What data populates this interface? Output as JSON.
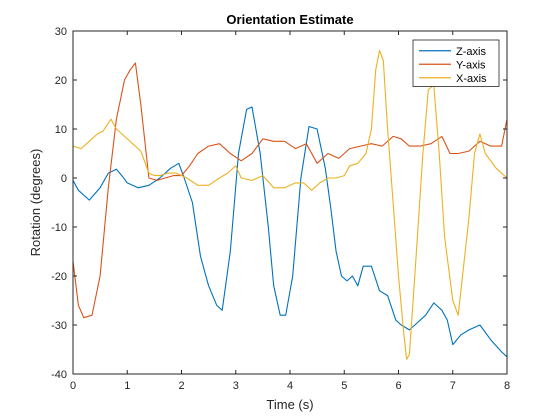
{
  "chart_data": {
    "type": "line",
    "title": "Orientation Estimate",
    "xlabel": "Time (s)",
    "ylabel": "Rotation (degrees)",
    "xlim": [
      0,
      8
    ],
    "ylim": [
      -40,
      30
    ],
    "xticks": [
      0,
      1,
      2,
      3,
      4,
      5,
      6,
      7,
      8
    ],
    "yticks": [
      30,
      20,
      10,
      0,
      -10,
      -20,
      -30,
      -40
    ],
    "grid": false,
    "legend_position": "top-right",
    "series": [
      {
        "name": "Z-axis",
        "color": "#0072BD",
        "x": [
          0,
          0.1,
          0.3,
          0.5,
          0.65,
          0.8,
          0.9,
          1.0,
          1.2,
          1.4,
          1.6,
          1.8,
          1.95,
          2.05,
          2.2,
          2.35,
          2.5,
          2.65,
          2.75,
          2.9,
          3.05,
          3.2,
          3.3,
          3.45,
          3.6,
          3.7,
          3.82,
          3.92,
          4.05,
          4.2,
          4.35,
          4.5,
          4.65,
          4.75,
          4.85,
          4.95,
          5.05,
          5.15,
          5.25,
          5.35,
          5.5,
          5.65,
          5.8,
          5.95,
          6.05,
          6.2,
          6.35,
          6.5,
          6.65,
          6.8,
          6.9,
          7.0,
          7.15,
          7.3,
          7.5,
          7.7,
          7.9,
          8.0
        ],
        "y": [
          -0.5,
          -2.5,
          -4.5,
          -2,
          1,
          1.8,
          0.5,
          -1,
          -2,
          -1.5,
          0,
          2,
          3,
          0,
          -5,
          -16,
          -22,
          -26,
          -27,
          -15,
          5,
          14,
          14.5,
          5,
          -10,
          -22,
          -28,
          -28,
          -20,
          0,
          10.5,
          10,
          2,
          -6,
          -15,
          -20,
          -21,
          -20,
          -22,
          -18,
          -18,
          -23,
          -24,
          -29,
          -30,
          -31,
          -29.5,
          -28,
          -25.5,
          -27,
          -29,
          -34,
          -32,
          -31,
          -30,
          -33,
          -35.5,
          -36.5
        ]
      },
      {
        "name": "Y-axis",
        "color": "#D95319",
        "x": [
          0,
          0.1,
          0.2,
          0.35,
          0.5,
          0.65,
          0.8,
          0.95,
          1.05,
          1.15,
          1.25,
          1.4,
          1.55,
          1.7,
          1.85,
          2.0,
          2.15,
          2.3,
          2.5,
          2.7,
          2.9,
          3.1,
          3.3,
          3.5,
          3.7,
          3.9,
          4.1,
          4.3,
          4.5,
          4.7,
          4.9,
          5.1,
          5.3,
          5.5,
          5.7,
          5.9,
          6.05,
          6.2,
          6.4,
          6.6,
          6.8,
          6.95,
          7.1,
          7.3,
          7.5,
          7.7,
          7.9,
          8.0
        ],
        "y": [
          -17,
          -26,
          -28.5,
          -28,
          -20,
          -2,
          12,
          20,
          22,
          23.5,
          15,
          0,
          -0.5,
          0,
          0.5,
          0.5,
          2.5,
          5,
          6.5,
          7,
          5,
          3.5,
          5,
          8,
          7.5,
          7.5,
          6,
          7,
          3,
          5,
          4,
          6,
          6.5,
          7,
          6.5,
          8.5,
          8,
          6.5,
          6.5,
          7,
          8.5,
          5,
          5,
          5.5,
          7.5,
          6.5,
          6.5,
          12
        ]
      },
      {
        "name": "X-axis",
        "color": "#EDB120",
        "x": [
          0,
          0.15,
          0.3,
          0.45,
          0.55,
          0.7,
          0.8,
          0.95,
          1.1,
          1.25,
          1.4,
          1.5,
          1.6,
          1.75,
          1.9,
          2.1,
          2.3,
          2.5,
          2.7,
          2.85,
          3.0,
          3.1,
          3.3,
          3.5,
          3.7,
          3.9,
          4.1,
          4.25,
          4.4,
          4.55,
          4.7,
          4.85,
          5.0,
          5.1,
          5.25,
          5.4,
          5.5,
          5.58,
          5.65,
          5.72,
          5.8,
          5.9,
          6.0,
          6.1,
          6.15,
          6.2,
          6.3,
          6.45,
          6.55,
          6.65,
          6.75,
          6.85,
          7.0,
          7.1,
          7.2,
          7.3,
          7.4,
          7.5,
          7.6,
          7.8,
          8.0
        ],
        "y": [
          6.5,
          6,
          7.5,
          9,
          9.5,
          12,
          10,
          8.5,
          7,
          5.5,
          1,
          0.5,
          0.5,
          1,
          1,
          0,
          -1.5,
          -1.5,
          0,
          1,
          2.5,
          0,
          -0.5,
          0.5,
          -2,
          -2,
          -1,
          -1,
          -2.5,
          -1,
          0,
          0,
          0.5,
          2.5,
          3,
          5,
          10,
          22,
          26,
          24,
          10,
          -5,
          -20,
          -32,
          -37,
          -36,
          -20,
          5,
          18,
          19,
          5,
          -12,
          -25,
          -28,
          -18,
          -8,
          5,
          9,
          5,
          2,
          0
        ]
      }
    ]
  }
}
